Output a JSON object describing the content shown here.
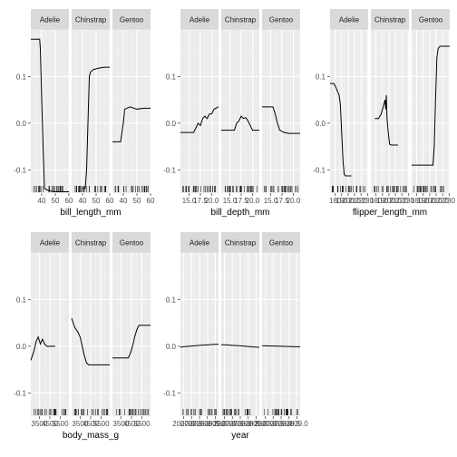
{
  "chart_data": {
    "type": "line",
    "y_ticks": [
      -0.1,
      0.0,
      0.1
    ],
    "y_tick_labels": [
      "-0.1",
      "0.0",
      "0.1"
    ],
    "ylim": [
      -0.15,
      0.2
    ],
    "species": [
      "Adelie",
      "Chinstrap",
      "Gentoo"
    ],
    "features": [
      {
        "name": "bill_length_mm",
        "xlabel": "bill_length_mm",
        "xlim": [
          32,
          60
        ],
        "x_ticks": [
          40,
          50,
          60
        ],
        "x_tick_labels": [
          "40",
          "50",
          "60"
        ],
        "curves": {
          "Adelie": [
            [
              32,
              0.18
            ],
            [
              38.5,
              0.18
            ],
            [
              39,
              0.16
            ],
            [
              40,
              0.05
            ],
            [
              41,
              -0.05
            ],
            [
              42,
              -0.14
            ],
            [
              44,
              -0.143
            ],
            [
              47,
              -0.146
            ],
            [
              50,
              -0.147
            ],
            [
              55,
              -0.147
            ],
            [
              60,
              -0.147
            ]
          ],
          "Chinstrap": [
            [
              40,
              -0.14
            ],
            [
              42,
              -0.14
            ],
            [
              43,
              -0.1
            ],
            [
              44,
              0.0
            ],
            [
              45,
              0.1
            ],
            [
              46,
              0.11
            ],
            [
              48,
              0.115
            ],
            [
              52,
              0.118
            ],
            [
              56,
              0.12
            ],
            [
              60,
              0.12
            ]
          ],
          "Gentoo": [
            [
              32,
              -0.04
            ],
            [
              38,
              -0.04
            ],
            [
              40,
              0.0
            ],
            [
              41,
              0.03
            ],
            [
              45,
              0.035
            ],
            [
              50,
              0.03
            ],
            [
              55,
              0.032
            ],
            [
              60,
              0.032
            ]
          ]
        }
      },
      {
        "name": "bill_depth_mm",
        "xlabel": "bill_depth_mm",
        "xlim": [
          13.1,
          21.5
        ],
        "x_ticks": [
          15,
          17.5,
          20
        ],
        "x_tick_labels": [
          "15.0",
          "17.5",
          "20.0"
        ],
        "curves": {
          "Adelie": [
            [
              13.1,
              -0.02
            ],
            [
              16,
              -0.02
            ],
            [
              16.5,
              -0.01
            ],
            [
              17,
              0.0
            ],
            [
              17.5,
              -0.005
            ],
            [
              18,
              0.01
            ],
            [
              18.5,
              0.015
            ],
            [
              19,
              0.01
            ],
            [
              19.5,
              0.02
            ],
            [
              20,
              0.02
            ],
            [
              20.5,
              0.03
            ],
            [
              21.5,
              0.035
            ]
          ],
          "Chinstrap": [
            [
              13.1,
              -0.015
            ],
            [
              16,
              -0.015
            ],
            [
              16.5,
              0.0
            ],
            [
              17,
              0.005
            ],
            [
              17.5,
              0.015
            ],
            [
              18,
              0.01
            ],
            [
              18.5,
              0.012
            ],
            [
              19,
              0.005
            ],
            [
              19.5,
              -0.005
            ],
            [
              20,
              -0.015
            ],
            [
              21.5,
              -0.015
            ]
          ],
          "Gentoo": [
            [
              13.1,
              0.035
            ],
            [
              15.5,
              0.035
            ],
            [
              16,
              0.02
            ],
            [
              16.5,
              0.0
            ],
            [
              17,
              -0.015
            ],
            [
              18,
              -0.02
            ],
            [
              19,
              -0.022
            ],
            [
              21.5,
              -0.022
            ]
          ]
        }
      },
      {
        "name": "flipper_length_mm",
        "xlabel": "flipper_length_mm",
        "xlim": [
          172,
          231
        ],
        "x_ticks": [
          170,
          180,
          190,
          200,
          210,
          220,
          230
        ],
        "x_tick_labels": [
          "170",
          "180",
          "190",
          "200",
          "210",
          "220",
          "230"
        ],
        "curves": {
          "Adelie": [
            [
              172,
              0.085
            ],
            [
              178,
              0.085
            ],
            [
              180,
              0.08
            ],
            [
              183,
              0.07
            ],
            [
              186,
              0.06
            ],
            [
              188,
              0.04
            ],
            [
              190,
              -0.02
            ],
            [
              192,
              -0.08
            ],
            [
              194,
              -0.11
            ],
            [
              196,
              -0.113
            ],
            [
              200,
              -0.113
            ],
            [
              205,
              -0.113
            ]
          ],
          "Chinstrap": [
            [
              178,
              0.01
            ],
            [
              184,
              0.01
            ],
            [
              186,
              0.015
            ],
            [
              188,
              0.02
            ],
            [
              190,
              0.03
            ],
            [
              192,
              0.04
            ],
            [
              194,
              0.05
            ],
            [
              195,
              0.03
            ],
            [
              196,
              0.06
            ],
            [
              197,
              0.01
            ],
            [
              199,
              -0.02
            ],
            [
              201,
              -0.045
            ],
            [
              204,
              -0.047
            ],
            [
              210,
              -0.047
            ],
            [
              214,
              -0.047
            ]
          ],
          "Gentoo": [
            [
              172,
              -0.09
            ],
            [
              205,
              -0.09
            ],
            [
              207,
              -0.05
            ],
            [
              209,
              0.05
            ],
            [
              211,
              0.14
            ],
            [
              213,
              0.16
            ],
            [
              216,
              0.165
            ],
            [
              231,
              0.165
            ]
          ]
        }
      },
      {
        "name": "body_mass_g",
        "xlabel": "body_mass_g",
        "xlim": [
          2700,
          6300
        ],
        "x_ticks": [
          3500,
          4500,
          5500
        ],
        "x_tick_labels": [
          "3500",
          "4500",
          "5500"
        ],
        "curves": {
          "Adelie": [
            [
              2700,
              -0.03
            ],
            [
              3000,
              -0.01
            ],
            [
              3200,
              0.01
            ],
            [
              3400,
              0.02
            ],
            [
              3600,
              0.005
            ],
            [
              3800,
              0.015
            ],
            [
              4000,
              0.005
            ],
            [
              4200,
              0.0
            ],
            [
              4500,
              0.0
            ],
            [
              5000,
              0.0
            ]
          ],
          "Chinstrap": [
            [
              2700,
              0.06
            ],
            [
              3000,
              0.04
            ],
            [
              3300,
              0.03
            ],
            [
              3500,
              0.02
            ],
            [
              3700,
              0.0
            ],
            [
              3900,
              -0.02
            ],
            [
              4100,
              -0.035
            ],
            [
              4300,
              -0.04
            ],
            [
              5000,
              -0.04
            ],
            [
              6300,
              -0.04
            ]
          ],
          "Gentoo": [
            [
              2700,
              -0.025
            ],
            [
              4200,
              -0.025
            ],
            [
              4400,
              -0.015
            ],
            [
              4600,
              0.0
            ],
            [
              4800,
              0.02
            ],
            [
              5000,
              0.035
            ],
            [
              5200,
              0.045
            ],
            [
              6300,
              0.045
            ]
          ]
        }
      },
      {
        "name": "year",
        "xlabel": "year",
        "xlim": [
          2006.8,
          2009.2
        ],
        "x_ticks": [
          2007,
          2007.5,
          2008,
          2008.5,
          2009
        ],
        "x_tick_labels": [
          "2007.0",
          "2007.5",
          "2008.0",
          "2008.5",
          "2009.0"
        ],
        "curves": {
          "Adelie": [
            [
              2006.8,
              -0.002
            ],
            [
              2007,
              -0.001
            ],
            [
              2008,
              0.002
            ],
            [
              2009,
              0.004
            ],
            [
              2009.2,
              0.004
            ]
          ],
          "Chinstrap": [
            [
              2006.8,
              0.003
            ],
            [
              2007,
              0.003
            ],
            [
              2008,
              0.001
            ],
            [
              2009,
              -0.002
            ],
            [
              2009.2,
              -0.002
            ]
          ],
          "Gentoo": [
            [
              2006.8,
              0.001
            ],
            [
              2007,
              0.001
            ],
            [
              2008,
              0.0
            ],
            [
              2009,
              -0.001
            ],
            [
              2009.2,
              -0.001
            ]
          ]
        }
      }
    ]
  }
}
